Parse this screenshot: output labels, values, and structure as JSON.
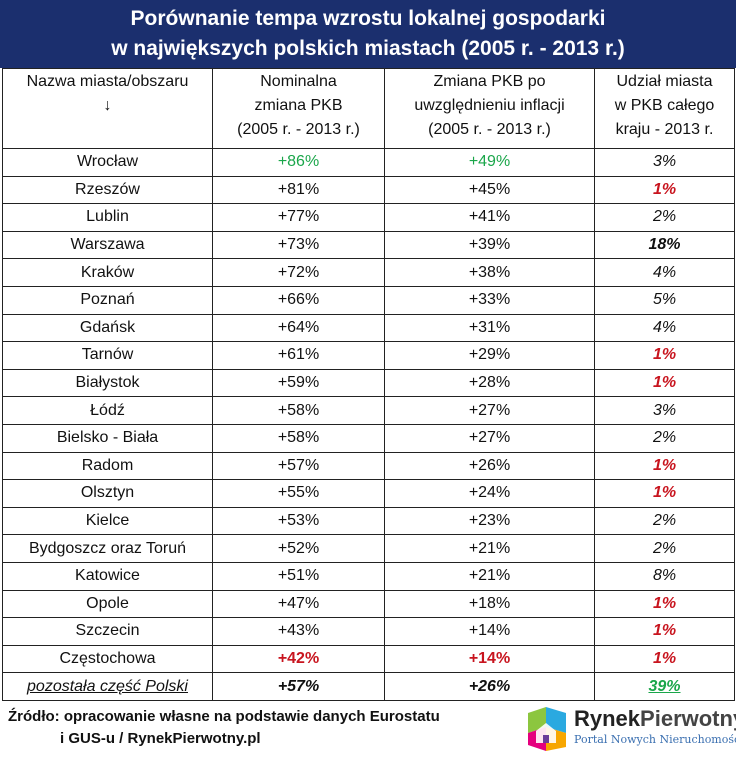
{
  "title_line1": "Porównanie tempa wzrostu lokalnej gospodarki",
  "title_line2": "w największych polskich miastach (2005 r. - 2013 r.)",
  "headers": {
    "city": [
      "Nazwa miasta/obszaru",
      "↓"
    ],
    "nominal": [
      "Nominalna",
      "zmiana PKB",
      "(2005 r. - 2013 r.)"
    ],
    "real": [
      "Zmiana PKB po",
      "uwzględnieniu inflacji",
      "(2005 r. - 2013 r.)"
    ],
    "share": [
      "Udział miasta",
      "w PKB całego",
      "kraju - 2013 r."
    ]
  },
  "rows": [
    {
      "city": "Wrocław",
      "nominal": "+86%",
      "real": "+49%",
      "share": "3%",
      "nominal_style": "green",
      "real_style": "green",
      "share_style": ""
    },
    {
      "city": "Rzeszów",
      "nominal": "+81%",
      "real": "+45%",
      "share": "1%",
      "nominal_style": "",
      "real_style": "",
      "share_style": "red bold"
    },
    {
      "city": "Lublin",
      "nominal": "+77%",
      "real": "+41%",
      "share": "2%",
      "nominal_style": "",
      "real_style": "",
      "share_style": ""
    },
    {
      "city": "Warszawa",
      "nominal": "+73%",
      "real": "+39%",
      "share": "18%",
      "nominal_style": "",
      "real_style": "",
      "share_style": "bold"
    },
    {
      "city": "Kraków",
      "nominal": "+72%",
      "real": "+38%",
      "share": "4%",
      "nominal_style": "",
      "real_style": "",
      "share_style": ""
    },
    {
      "city": "Poznań",
      "nominal": "+66%",
      "real": "+33%",
      "share": "5%",
      "nominal_style": "",
      "real_style": "",
      "share_style": ""
    },
    {
      "city": "Gdańsk",
      "nominal": "+64%",
      "real": "+31%",
      "share": "4%",
      "nominal_style": "",
      "real_style": "",
      "share_style": ""
    },
    {
      "city": "Tarnów",
      "nominal": "+61%",
      "real": "+29%",
      "share": "1%",
      "nominal_style": "",
      "real_style": "",
      "share_style": "red bold"
    },
    {
      "city": "Białystok",
      "nominal": "+59%",
      "real": "+28%",
      "share": "1%",
      "nominal_style": "",
      "real_style": "",
      "share_style": "red bold"
    },
    {
      "city": "Łódź",
      "nominal": "+58%",
      "real": "+27%",
      "share": "3%",
      "nominal_style": "",
      "real_style": "",
      "share_style": ""
    },
    {
      "city": "Bielsko - Biała",
      "nominal": "+58%",
      "real": "+27%",
      "share": "2%",
      "nominal_style": "",
      "real_style": "",
      "share_style": ""
    },
    {
      "city": "Radom",
      "nominal": "+57%",
      "real": "+26%",
      "share": "1%",
      "nominal_style": "",
      "real_style": "",
      "share_style": "red bold"
    },
    {
      "city": "Olsztyn",
      "nominal": "+55%",
      "real": "+24%",
      "share": "1%",
      "nominal_style": "",
      "real_style": "",
      "share_style": "red bold"
    },
    {
      "city": "Kielce",
      "nominal": "+53%",
      "real": "+23%",
      "share": "2%",
      "nominal_style": "",
      "real_style": "",
      "share_style": ""
    },
    {
      "city": "Bydgoszcz oraz Toruń",
      "nominal": "+52%",
      "real": "+21%",
      "share": "2%",
      "nominal_style": "",
      "real_style": "",
      "share_style": ""
    },
    {
      "city": "Katowice",
      "nominal": "+51%",
      "real": "+21%",
      "share": "8%",
      "nominal_style": "",
      "real_style": "",
      "share_style": ""
    },
    {
      "city": "Opole",
      "nominal": "+47%",
      "real": "+18%",
      "share": "1%",
      "nominal_style": "",
      "real_style": "",
      "share_style": "red bold"
    },
    {
      "city": "Szczecin",
      "nominal": "+43%",
      "real": "+14%",
      "share": "1%",
      "nominal_style": "",
      "real_style": "",
      "share_style": "red bold"
    },
    {
      "city": "Częstochowa",
      "nominal": "+42%",
      "real": "+14%",
      "share": "1%",
      "nominal_style": "red bold",
      "real_style": "red bold",
      "share_style": "red bold"
    }
  ],
  "total_row": {
    "city": "pozostała część Polski",
    "nominal": "+57%",
    "real": "+26%",
    "share": "39%"
  },
  "source_line1": "Źródło: opracowanie własne na podstawie danych Eurostatu",
  "source_line2": "i GUS-u / RynekPierwotny.pl",
  "logo_name_a": "Rynek",
  "logo_name_b": "Pierwotny",
  "logo_tagline": "Portal Nowych Nieruchomości",
  "colors": {
    "title_bg": "#1b2f6e",
    "green": "#1aa64a",
    "red": "#c8141e"
  }
}
